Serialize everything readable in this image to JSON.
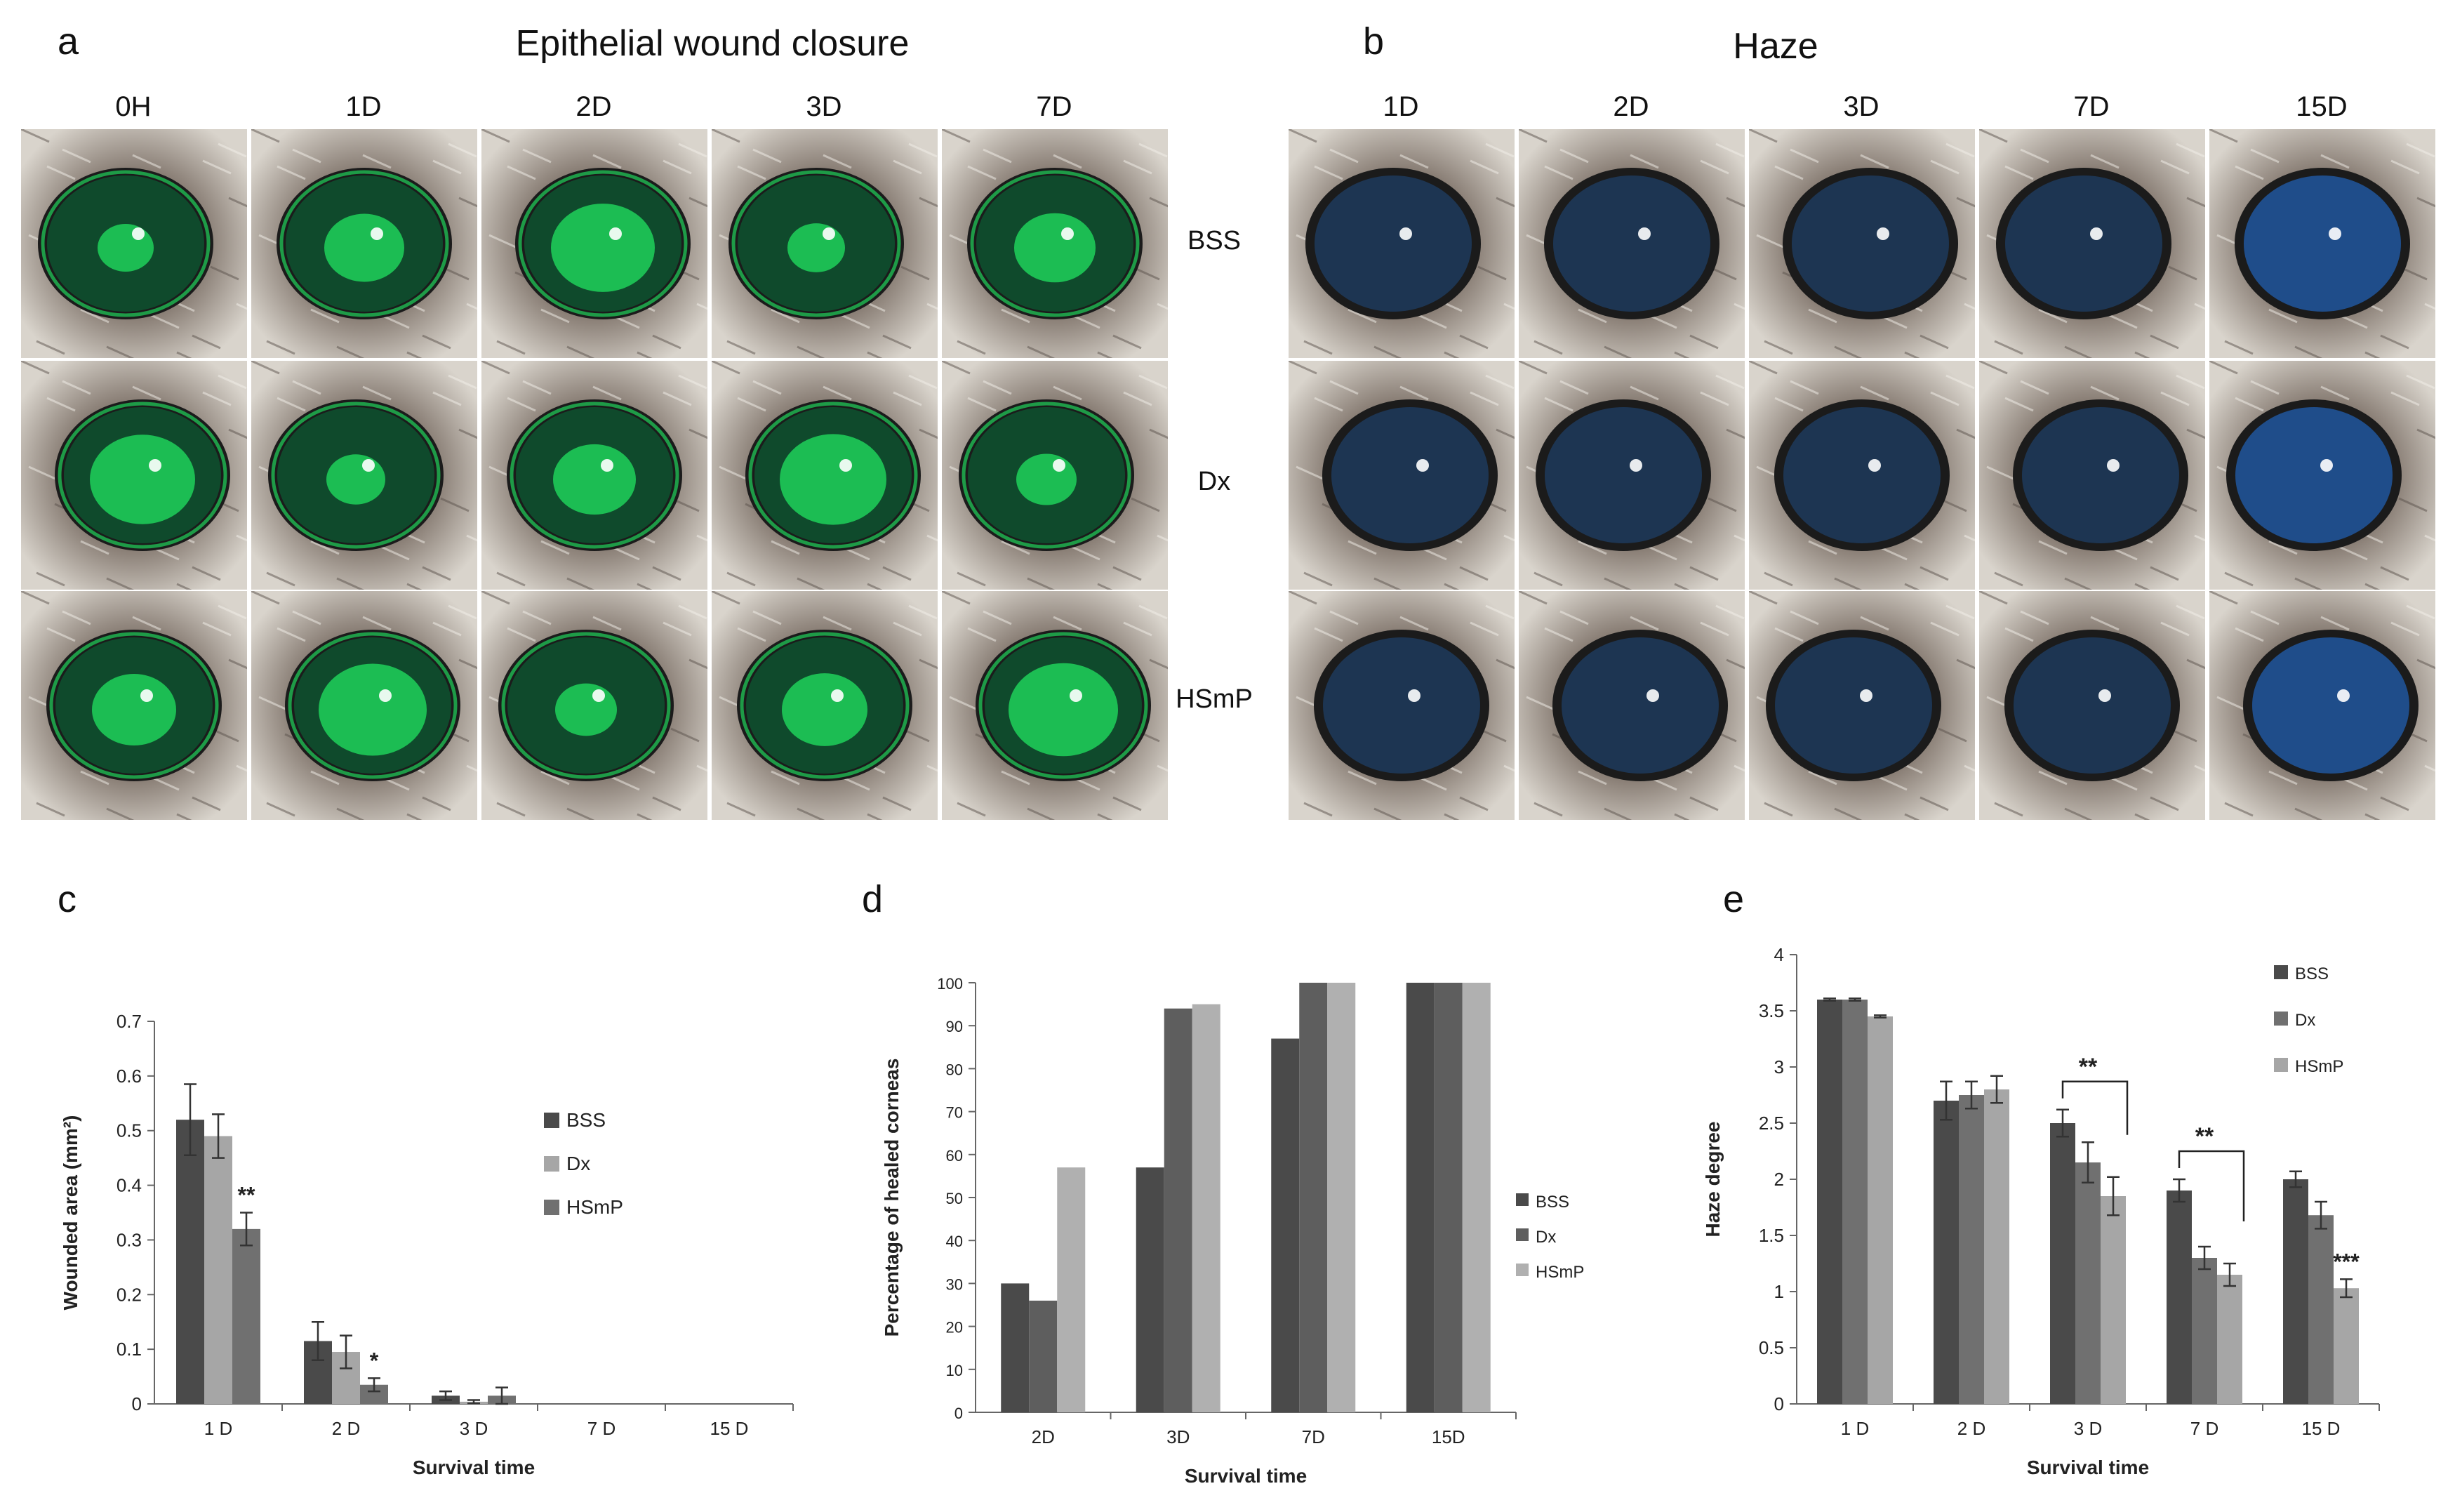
{
  "panels": {
    "a": {
      "letter": "a",
      "title": "Epithelial wound closure",
      "columns": [
        "0H",
        "1D",
        "2D",
        "3D",
        "7D"
      ],
      "rows": [
        "BSS",
        "Dx",
        "HSmP"
      ]
    },
    "b": {
      "letter": "b",
      "title": "Haze",
      "columns": [
        "1D",
        "2D",
        "3D",
        "7D",
        "15D"
      ]
    },
    "c": {
      "letter": "c"
    },
    "d": {
      "letter": "d"
    },
    "e": {
      "letter": "e"
    }
  },
  "colors": {
    "series1": "#4a4a4a",
    "series2": "#707070",
    "series3": "#a6a6a6",
    "fluorescein": "#1fd15a",
    "haze_cornea": "#1d3552"
  },
  "chart_data": [
    {
      "id": "c",
      "type": "bar",
      "categories": [
        "1 D",
        "2 D",
        "3 D",
        "7 D",
        "15 D"
      ],
      "series": [
        {
          "name": "BSS",
          "values": [
            0.52,
            0.115,
            0.015,
            0,
            0
          ],
          "errors": [
            0.065,
            0.035,
            0.008,
            0,
            0
          ],
          "color": "#4a4a4a"
        },
        {
          "name": "Dx",
          "values": [
            0.49,
            0.095,
            0.004,
            0,
            0
          ],
          "errors": [
            0.04,
            0.03,
            0.003,
            0,
            0
          ],
          "color": "#a6a6a6"
        },
        {
          "name": "HSmP",
          "values": [
            0.32,
            0.035,
            0.015,
            0,
            0
          ],
          "errors": [
            0.03,
            0.012,
            0.015,
            0,
            0
          ],
          "color": "#707070"
        }
      ],
      "annotations": [
        {
          "text": "**",
          "category": "1 D",
          "series": "HSmP"
        },
        {
          "text": "*",
          "category": "2 D",
          "series": "HSmP"
        }
      ],
      "xlabel": "Survival time",
      "ylabel": "Wounded area (mm²)",
      "ylim": [
        0,
        0.7
      ],
      "yticks": [
        "0",
        "0.1",
        "0.2",
        "0.3",
        "0.4",
        "0.5",
        "0.6",
        "0.7"
      ],
      "legend": "right"
    },
    {
      "id": "d",
      "type": "bar",
      "categories": [
        "2D",
        "3D",
        "7D",
        "15D"
      ],
      "series": [
        {
          "name": "BSS",
          "values": [
            30,
            57,
            87,
            100
          ],
          "color": "#4a4a4a"
        },
        {
          "name": "Dx",
          "values": [
            26,
            94,
            100,
            100
          ],
          "color": "#5e5e5e"
        },
        {
          "name": "HSmP",
          "values": [
            57,
            95,
            100,
            100
          ],
          "color": "#b0b0b0"
        }
      ],
      "xlabel": "Survival time",
      "ylabel": "Percentage of healed corneas",
      "ylim": [
        0,
        100
      ],
      "yticks": [
        "0",
        "10",
        "20",
        "30",
        "40",
        "50",
        "60",
        "70",
        "80",
        "90",
        "100"
      ],
      "legend": "right"
    },
    {
      "id": "e",
      "type": "bar",
      "categories": [
        "1 D",
        "2 D",
        "3 D",
        "7 D",
        "15 D"
      ],
      "series": [
        {
          "name": "BSS",
          "values": [
            3.6,
            2.7,
            2.5,
            1.9,
            2.0
          ],
          "errors": [
            0.01,
            0.17,
            0.12,
            0.1,
            0.07
          ],
          "color": "#4a4a4a"
        },
        {
          "name": "Dx",
          "values": [
            3.6,
            2.75,
            2.15,
            1.3,
            1.68
          ],
          "errors": [
            0.01,
            0.12,
            0.18,
            0.1,
            0.12
          ],
          "color": "#707070"
        },
        {
          "name": "HSmP",
          "values": [
            3.45,
            2.8,
            1.85,
            1.15,
            1.03
          ],
          "errors": [
            0.01,
            0.12,
            0.17,
            0.1,
            0.08
          ],
          "color": "#a6a6a6"
        }
      ],
      "annotations": [
        {
          "text": "**",
          "category": "3 D",
          "bracket": true
        },
        {
          "text": "**",
          "category": "7 D",
          "bracket": true
        },
        {
          "text": "***",
          "category": "15 D",
          "series": "HSmP"
        }
      ],
      "xlabel": "Survival time",
      "ylabel": "Haze degree",
      "ylim": [
        0,
        4
      ],
      "yticks": [
        "0",
        "0.5",
        "1",
        "1.5",
        "2",
        "2.5",
        "3",
        "3.5",
        "4"
      ],
      "legend": "right"
    }
  ]
}
